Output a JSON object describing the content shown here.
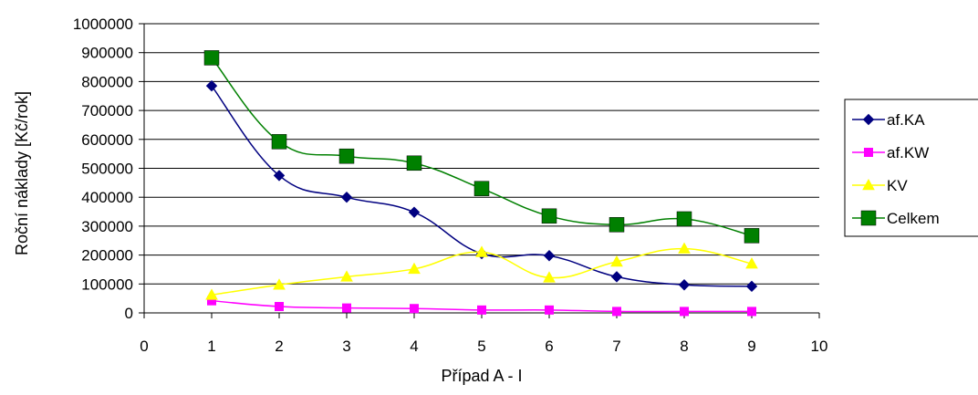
{
  "chart_data": {
    "type": "line",
    "title": "",
    "xlabel": "Případ A - I",
    "ylabel": "Roční náklady [Kč/rok]",
    "xlim": [
      0,
      10
    ],
    "ylim": [
      0,
      1000000
    ],
    "x_ticks": [
      "0",
      "1",
      "2",
      "3",
      "4",
      "5",
      "6",
      "7",
      "8",
      "9",
      "10"
    ],
    "y_ticks": [
      "0",
      "100000",
      "200000",
      "300000",
      "400000",
      "500000",
      "600000",
      "700000",
      "800000",
      "900000",
      "1000000"
    ],
    "grid": "horizontal",
    "legend_position": "right",
    "x": [
      1,
      2,
      3,
      4,
      5,
      6,
      7,
      8,
      9
    ],
    "series": [
      {
        "name": "af.KA",
        "color": "#000080",
        "marker": "diamond",
        "values": [
          785000,
          475000,
          400000,
          348000,
          205000,
          198000,
          125000,
          97000,
          92000
        ]
      },
      {
        "name": "af.KW",
        "color": "#FF00FF",
        "marker": "square",
        "values": [
          42000,
          22000,
          17000,
          15000,
          10000,
          10000,
          5000,
          5000,
          5000
        ]
      },
      {
        "name": "KV",
        "color": "#FFFF00",
        "marker": "triangle",
        "values": [
          62000,
          97000,
          125000,
          152000,
          210000,
          122000,
          177000,
          222000,
          170000
        ]
      },
      {
        "name": "Celkem",
        "color": "#008000",
        "marker": "square-large",
        "values": [
          882000,
          592000,
          542000,
          518000,
          430000,
          335000,
          305000,
          325000,
          267000
        ]
      }
    ]
  }
}
